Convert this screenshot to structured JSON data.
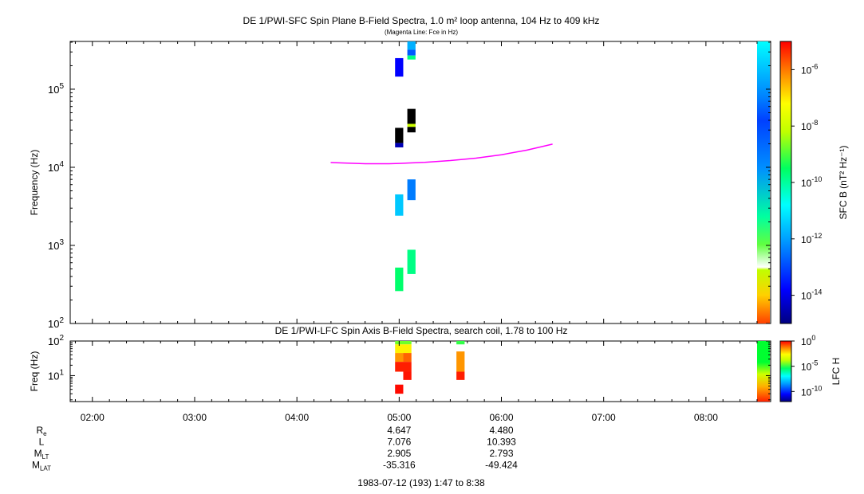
{
  "chart_data": [
    {
      "type": "heatmap",
      "title": "DE 1/PWI-SFC  Spin Plane B-Field Spectra, 1.0 m² loop antenna, 104 Hz to 409 kHz",
      "subtitle": "(Magenta Line: Fce in Hz)",
      "ylabel": "Frequency (Hz)",
      "yscale": "log",
      "ylim": [
        100,
        409000
      ],
      "y_ticks": [
        {
          "value": 100,
          "mant": "10",
          "exp": "2"
        },
        {
          "value": 1000,
          "mant": "10",
          "exp": "3"
        },
        {
          "value": 10000,
          "mant": "10",
          "exp": "4"
        },
        {
          "value": 100000,
          "mant": "10",
          "exp": "5"
        }
      ],
      "xlim_hours": [
        1.783,
        8.633
      ],
      "colorbar": {
        "label": "SFC B (nT² Hz⁻¹)",
        "scale": "log",
        "range": [
          1e-15,
          1e-05
        ],
        "ticks": [
          {
            "value": 1e-06,
            "mant": "10",
            "exp": "-6"
          },
          {
            "value": 1e-08,
            "mant": "10",
            "exp": "-8"
          },
          {
            "value": 1e-10,
            "mant": "10",
            "exp": "-10"
          },
          {
            "value": 1e-12,
            "mant": "10",
            "exp": "-12"
          },
          {
            "value": 1e-14,
            "mant": "10",
            "exp": "-14"
          }
        ]
      },
      "cells": [
        {
          "t0": 4.96,
          "t1": 5.04,
          "f0": 145000,
          "f1": 250000,
          "v": -13.8
        },
        {
          "t0": 5.08,
          "t1": 5.16,
          "f0": 320000,
          "f1": 409000,
          "v": -11.8
        },
        {
          "t0": 5.08,
          "t1": 5.16,
          "f0": 270000,
          "f1": 320000,
          "v": -12.8
        },
        {
          "t0": 5.08,
          "t1": 5.16,
          "f0": 240000,
          "f1": 270000,
          "v": -9.8
        },
        {
          "t0": 4.96,
          "t1": 5.04,
          "f0": 18000,
          "f1": 20500,
          "v": -14.5
        },
        {
          "t0": 4.96,
          "t1": 5.04,
          "f0": 20500,
          "f1": 32000,
          "v": -20.0
        },
        {
          "t0": 5.08,
          "t1": 5.16,
          "f0": 28000,
          "f1": 33000,
          "v": -20.0
        },
        {
          "t0": 5.08,
          "t1": 5.16,
          "f0": 33000,
          "f1": 36000,
          "v": -8.0
        },
        {
          "t0": 5.08,
          "t1": 5.16,
          "f0": 36000,
          "f1": 56000,
          "v": -20.0
        },
        {
          "t0": 4.96,
          "t1": 5.04,
          "f0": 2400,
          "f1": 4500,
          "v": -11.5
        },
        {
          "t0": 5.08,
          "t1": 5.16,
          "f0": 3800,
          "f1": 7000,
          "v": -12.4
        },
        {
          "t0": 4.96,
          "t1": 5.04,
          "f0": 260,
          "f1": 520,
          "v": -9.6
        },
        {
          "t0": 5.08,
          "t1": 5.16,
          "f0": 430,
          "f1": 880,
          "v": -9.8
        }
      ],
      "fce_line": {
        "name": "Fce",
        "x_hours": [
          4.33,
          4.5,
          4.67,
          4.9,
          5.0,
          5.25,
          5.5,
          5.75,
          6.0,
          6.25,
          6.5
        ],
        "y_hz": [
          11500,
          11300,
          11100,
          11100,
          11200,
          11600,
          12200,
          13100,
          14500,
          16600,
          19800
        ]
      }
    },
    {
      "type": "heatmap",
      "title": "DE 1/PWI-LFC  Spin Axis B-Field Spectra, search coil, 1.78 to 100 Hz",
      "ylabel": "Freq (Hz)",
      "yscale": "log",
      "ylim": [
        1.78,
        100
      ],
      "y_ticks": [
        {
          "value": 10,
          "mant": "10",
          "exp": "1"
        },
        {
          "value": 100,
          "mant": "10",
          "exp": "2"
        }
      ],
      "xlim_hours": [
        1.783,
        8.633
      ],
      "x_ticks": [
        "02:00",
        "03:00",
        "04:00",
        "05:00",
        "06:00",
        "07:00",
        "08:00"
      ],
      "colorbar": {
        "label": "LFC H",
        "scale": "log",
        "range": [
          1e-12,
          1
        ],
        "ticks": [
          {
            "value": 1,
            "mant": "10",
            "exp": "0"
          },
          {
            "value": 1e-05,
            "mant": "10",
            "exp": "-5"
          },
          {
            "value": 1e-10,
            "mant": "10",
            "exp": "-10"
          }
        ]
      },
      "cells": [
        {
          "t0": 4.96,
          "t1": 5.12,
          "f0": 80,
          "f1": 100,
          "v": -4.5
        },
        {
          "t0": 4.96,
          "t1": 5.12,
          "f0": 45,
          "f1": 80,
          "v": -2.5
        },
        {
          "t0": 4.96,
          "t1": 5.04,
          "f0": 25,
          "f1": 45,
          "v": -1.5
        },
        {
          "t0": 5.04,
          "t1": 5.12,
          "f0": 25,
          "f1": 45,
          "v": -1.0
        },
        {
          "t0": 4.96,
          "t1": 5.12,
          "f0": 13,
          "f1": 25,
          "v": -0.3
        },
        {
          "t0": 5.04,
          "t1": 5.12,
          "f0": 7.5,
          "f1": 13,
          "v": -0.2
        },
        {
          "t0": 4.96,
          "t1": 5.04,
          "f0": 3.0,
          "f1": 5.5,
          "v": -0.1
        },
        {
          "t0": 5.56,
          "t1": 5.64,
          "f0": 80,
          "f1": 100,
          "v": -5.0
        },
        {
          "t0": 5.56,
          "t1": 5.64,
          "f0": 13,
          "f1": 50,
          "v": -1.5
        },
        {
          "t0": 5.56,
          "t1": 5.64,
          "f0": 7.5,
          "f1": 13,
          "v": -0.3
        }
      ]
    }
  ],
  "ephemeris": {
    "rows": [
      {
        "label": "R",
        "sub": "e",
        "v1": "4.647",
        "v2": "4.480"
      },
      {
        "label": "L",
        "sub": "",
        "v1": "7.076",
        "v2": "10.393"
      },
      {
        "label": "M",
        "sub": "LT",
        "v1": "2.905",
        "v2": "2.793"
      },
      {
        "label": "M",
        "sub": "LAT",
        "v1": "-35.316",
        "v2": "-49.424"
      }
    ],
    "footer": "1983-07-12 (193) 1:47 to 8:38"
  }
}
